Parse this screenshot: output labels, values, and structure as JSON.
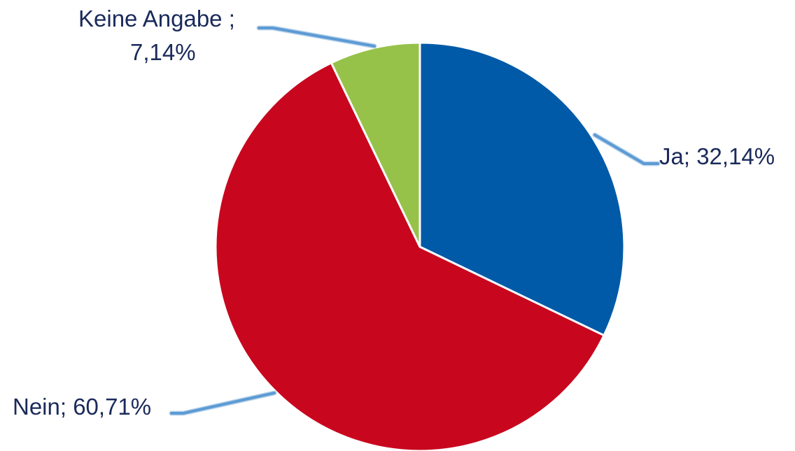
{
  "chart_data": {
    "type": "pie",
    "title": "",
    "slices": [
      {
        "label": "Ja",
        "value": 32.14,
        "label_text_1": "Ja; 32,14%",
        "label_text_2": "",
        "color": "#005aa7"
      },
      {
        "label": "Nein",
        "value": 60.71,
        "label_text_1": "Nein; 60,71%",
        "label_text_2": "",
        "color": "#c8071e"
      },
      {
        "label": "Keine Angabe",
        "value": 7.14,
        "label_text_1": "Keine Angabe ;",
        "label_text_2": "7,14%",
        "color": "#97c24a"
      }
    ],
    "start_angle_deg": 0,
    "direction": "clockwise",
    "legend": "none"
  }
}
